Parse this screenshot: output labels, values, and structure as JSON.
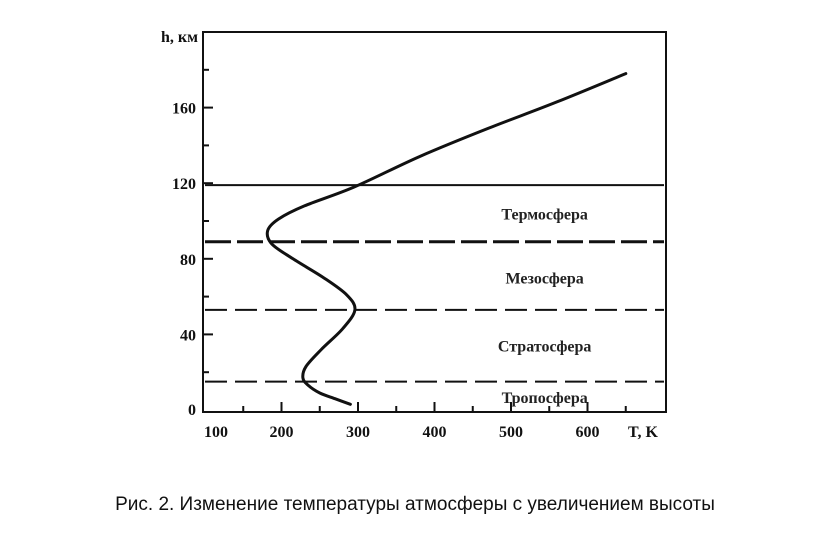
{
  "chart_data": {
    "type": "line",
    "xlabel": "T, K",
    "ylabel": "h, км",
    "xlim": [
      100,
      700
    ],
    "ylim": [
      0,
      200
    ],
    "x_ticks": [
      100,
      200,
      300,
      400,
      500,
      600
    ],
    "y_ticks": [
      0,
      40,
      80,
      120,
      160
    ],
    "series": [
      {
        "x": [
          290,
          270,
          250,
          235,
          228,
          232,
          252,
          280,
          296,
          285,
          255,
          215,
          187,
          182,
          196,
          230,
          295,
          380,
          470,
          560,
          650
        ],
        "y": [
          3,
          6,
          9,
          13,
          17,
          23,
          32,
          43,
          53,
          61,
          70,
          80,
          88,
          95,
          101,
          108,
          118,
          134,
          149,
          163,
          178
        ]
      }
    ],
    "boundaries": [
      {
        "h": 15,
        "style": "dashed"
      },
      {
        "h": 53,
        "style": "dashed"
      },
      {
        "h": 89,
        "style": "long-dashed"
      },
      {
        "h": 119,
        "style": "solid"
      }
    ],
    "regions": [
      {
        "label": "Тропосфера",
        "h": 7
      },
      {
        "label": "Стратосфера",
        "h": 34
      },
      {
        "label": "Мезосфера",
        "h": 70
      },
      {
        "label": "Термосфера",
        "h": 104
      }
    ]
  },
  "caption": "Рис. 2. Изменение температуры атмосферы с увеличением высоты"
}
